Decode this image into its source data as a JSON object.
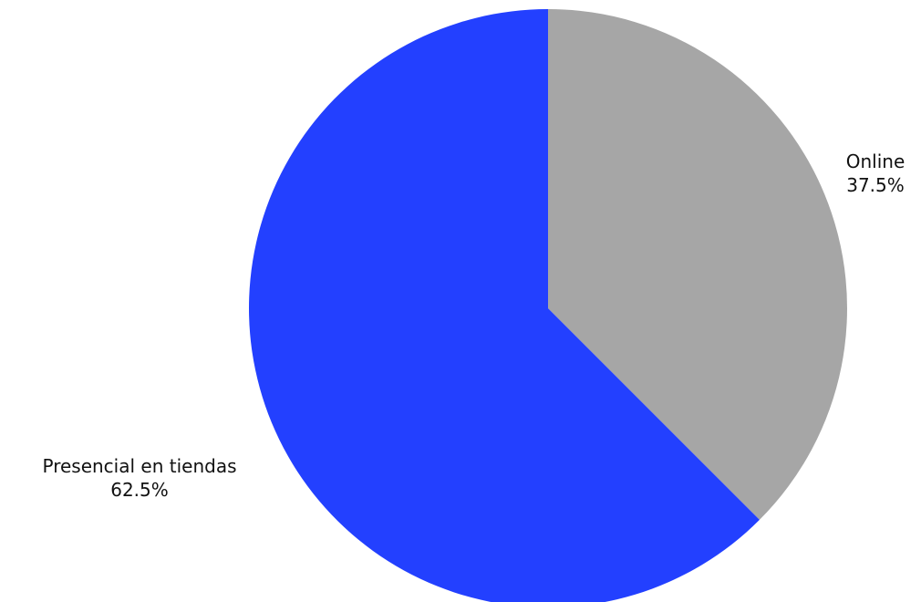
{
  "chart_data": {
    "type": "pie",
    "title": "",
    "start_angle": "12 o'clock",
    "direction": "clockwise",
    "slices": [
      {
        "label": "Online",
        "value": 37.5,
        "value_label": "37.5%",
        "color": "#a6a6a6"
      },
      {
        "label": "Presencial en tiendas",
        "value": 62.5,
        "value_label": "62.5%",
        "color": "#2340ff"
      }
    ]
  }
}
